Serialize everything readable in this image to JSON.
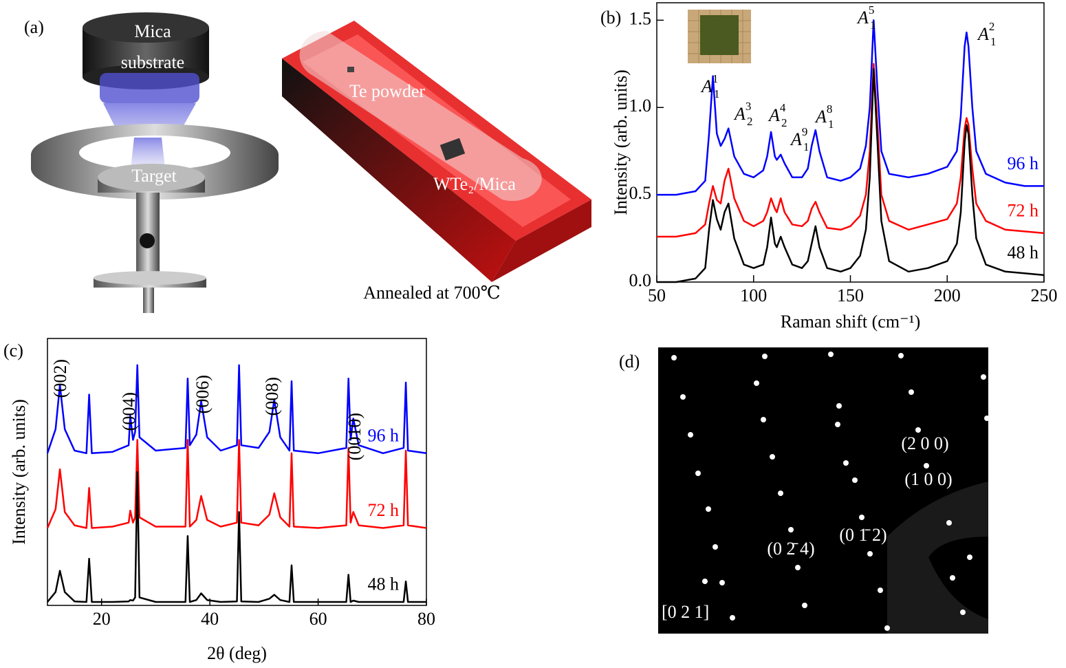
{
  "panel_a": {
    "label": "(a)",
    "mica_top": "Mica",
    "mica_bottom": "substrate",
    "target": "Target",
    "powder": "Te powder",
    "sample": "WTe₂/Mica",
    "caption": "Annealed at 700℃"
  },
  "panel_d": {
    "label": "(d)",
    "spots": [
      "(2 0 0)",
      "(1 0 0)",
      "(0 1̄ 2)",
      "(0 2̄ 4)"
    ],
    "zone_axis": "[0 2 1]"
  },
  "chart_data": [
    {
      "type": "line",
      "label": "(b)",
      "xlabel": "Raman shift (cm⁻¹)",
      "ylabel": "Intensity (arb. units)",
      "x": [
        50,
        60,
        70,
        75,
        77,
        79,
        81,
        83,
        85,
        87,
        90,
        95,
        100,
        105,
        107,
        109,
        111,
        112,
        114,
        116,
        120,
        125,
        128,
        130,
        132,
        134,
        138,
        145,
        150,
        155,
        158,
        160,
        162,
        164,
        166,
        170,
        180,
        190,
        200,
        205,
        207,
        209,
        210,
        211,
        213,
        215,
        220,
        230,
        240,
        250
      ],
      "series": [
        {
          "name": "96 h",
          "color": "#0000ff",
          "values": [
            0.5,
            0.5,
            0.52,
            0.58,
            0.85,
            1.18,
            0.85,
            0.78,
            0.82,
            0.88,
            0.72,
            0.62,
            0.6,
            0.64,
            0.72,
            0.86,
            0.72,
            0.7,
            0.73,
            0.68,
            0.6,
            0.6,
            0.65,
            0.78,
            0.87,
            0.75,
            0.6,
            0.58,
            0.6,
            0.65,
            0.78,
            1.0,
            1.5,
            1.1,
            0.75,
            0.62,
            0.6,
            0.62,
            0.66,
            0.75,
            0.95,
            1.35,
            1.43,
            1.35,
            1.0,
            0.75,
            0.62,
            0.57,
            0.55,
            0.55
          ]
        },
        {
          "name": "72 h",
          "color": "#ff0000",
          "values": [
            0.26,
            0.26,
            0.28,
            0.33,
            0.45,
            0.55,
            0.47,
            0.45,
            0.58,
            0.65,
            0.48,
            0.35,
            0.32,
            0.35,
            0.4,
            0.48,
            0.42,
            0.4,
            0.48,
            0.4,
            0.33,
            0.32,
            0.35,
            0.42,
            0.46,
            0.4,
            0.31,
            0.3,
            0.32,
            0.38,
            0.5,
            0.75,
            1.25,
            0.9,
            0.5,
            0.35,
            0.3,
            0.33,
            0.36,
            0.45,
            0.6,
            0.88,
            0.94,
            0.9,
            0.65,
            0.45,
            0.35,
            0.3,
            0.29,
            0.28
          ]
        },
        {
          "name": "48 h",
          "color": "#000000",
          "values": [
            0.0,
            0.0,
            0.02,
            0.08,
            0.3,
            0.47,
            0.36,
            0.3,
            0.4,
            0.45,
            0.25,
            0.1,
            0.08,
            0.1,
            0.2,
            0.37,
            0.22,
            0.2,
            0.26,
            0.2,
            0.1,
            0.08,
            0.12,
            0.22,
            0.32,
            0.2,
            0.08,
            0.06,
            0.08,
            0.15,
            0.3,
            0.6,
            1.22,
            0.8,
            0.35,
            0.12,
            0.06,
            0.08,
            0.12,
            0.22,
            0.4,
            0.8,
            0.9,
            0.85,
            0.5,
            0.25,
            0.1,
            0.06,
            0.05,
            0.04
          ]
        }
      ],
      "annotations": [
        {
          "base": "A",
          "sub": "1",
          "sup": "1"
        },
        {
          "base": "A",
          "sub": "2",
          "sup": "3"
        },
        {
          "base": "A",
          "sub": "2",
          "sup": "4"
        },
        {
          "base": "A",
          "sub": "1",
          "sup": "9"
        },
        {
          "base": "A",
          "sub": "1",
          "sup": "8"
        },
        {
          "base": "A",
          "sub": "1",
          "sup": "5"
        },
        {
          "base": "A",
          "sub": "1",
          "sup": "2"
        }
      ],
      "xlim": [
        50,
        250
      ],
      "xticks": [
        50,
        100,
        150,
        200,
        250
      ],
      "ylim": [
        0,
        1.6
      ],
      "yticks": [
        {
          "value": 0,
          "label": "0.0"
        },
        0.5,
        {
          "value": 1,
          "label": "1.0"
        },
        1.5
      ]
    },
    {
      "type": "line",
      "label": "(c)",
      "xlabel": "2θ (deg)",
      "ylabel": "Intensity (arb. units)",
      "x": [
        10,
        11.5,
        12.3,
        13.2,
        15,
        17.2,
        17.7,
        18.2,
        22,
        25,
        25.3,
        25.8,
        26.2,
        26.6,
        27,
        30,
        35.5,
        35.9,
        36.3,
        37.5,
        38.4,
        39.5,
        42,
        45,
        45.4,
        45.8,
        49,
        51,
        51.9,
        53,
        54.7,
        55.1,
        55.5,
        60,
        65.2,
        65.6,
        66,
        66.5,
        67.5,
        72,
        75.8,
        76.2,
        76.6,
        80
      ],
      "series": [
        {
          "name": "96 h",
          "color": "#0000ff",
          "values": [
            5.7,
            6.6,
            8.25,
            6.6,
            5.8,
            5.7,
            7.9,
            5.7,
            5.75,
            6.0,
            7.1,
            6.2,
            6.5,
            9.0,
            6.3,
            5.8,
            5.9,
            8.5,
            6.0,
            6.4,
            7.65,
            6.3,
            5.8,
            6.0,
            9.0,
            6.0,
            5.9,
            6.5,
            7.7,
            6.3,
            5.8,
            8.4,
            5.8,
            5.7,
            5.9,
            8.5,
            6.2,
            7.0,
            6.0,
            5.7,
            5.9,
            8.35,
            5.8,
            5.7
          ]
        },
        {
          "name": "72 h",
          "color": "#ff0000",
          "values": [
            2.9,
            3.6,
            5.1,
            3.5,
            3.0,
            2.9,
            4.4,
            2.9,
            2.95,
            3.1,
            3.55,
            3.1,
            3.3,
            6.2,
            3.3,
            2.95,
            2.95,
            6.2,
            2.95,
            3.2,
            4.1,
            3.2,
            2.95,
            3.1,
            6.2,
            3.1,
            3.0,
            3.4,
            4.2,
            3.3,
            2.95,
            5.7,
            2.95,
            2.9,
            3.0,
            5.9,
            3.1,
            3.5,
            3.0,
            2.9,
            3.0,
            5.8,
            3.0,
            2.9
          ]
        },
        {
          "name": "48 h",
          "color": "#000000",
          "values": [
            0.13,
            0.5,
            1.3,
            0.5,
            0.15,
            0.13,
            1.75,
            0.13,
            0.13,
            0.15,
            0.2,
            0.18,
            0.3,
            5.0,
            0.3,
            0.13,
            0.13,
            2.6,
            0.13,
            0.2,
            0.45,
            0.2,
            0.13,
            0.15,
            3.5,
            0.15,
            0.13,
            0.25,
            0.4,
            0.2,
            0.13,
            1.5,
            0.13,
            0.13,
            0.13,
            1.15,
            0.13,
            0.18,
            0.13,
            0.13,
            0.13,
            0.9,
            0.13,
            0.13
          ]
        }
      ],
      "annotations": [
        "(002)",
        "(004)",
        "(006)",
        "(008)",
        "(0010)"
      ],
      "xlim": [
        10,
        80
      ],
      "xticks": [
        20,
        40,
        60,
        80
      ],
      "ylim": [
        0,
        10
      ]
    }
  ]
}
